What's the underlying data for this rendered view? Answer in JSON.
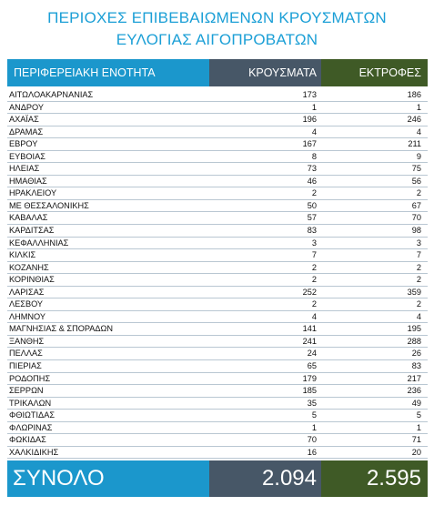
{
  "title": {
    "line1": "ΠΕΡΙΟΧΕΣ ΕΠΙΒΕΒΑΙΩΜΕΝΩΝ ΚΡΟΥΣΜΑΤΩΝ",
    "line2": "ΕΥΛΟΓΙΑΣ ΑΙΓΟΠΡΟΒΑΤΩΝ"
  },
  "colors": {
    "title": "#1b9fd6",
    "col1_header": "#1b97cc",
    "col2_header": "#475767",
    "col3_header": "#3f5a26"
  },
  "table": {
    "headers": [
      "ΠΕΡΙΦΕΡΕΙΑΚΗ ΕΝΟΤΗΤΑ",
      "ΚΡΟΥΣΜΑΤΑ",
      "ΕΚΤΡΟΦΕΣ"
    ],
    "rows": [
      [
        "ΑΙΤΩΛΟΑΚΑΡΝΑΝΙΑΣ",
        "173",
        "186"
      ],
      [
        "ΑΝΔΡΟΥ",
        "1",
        "1"
      ],
      [
        "ΑΧΑΪΑΣ",
        "196",
        "246"
      ],
      [
        "ΔΡΑΜΑΣ",
        "4",
        "4"
      ],
      [
        "ΕΒΡΟΥ",
        "167",
        "211"
      ],
      [
        "ΕΥΒΟΙΑΣ",
        "8",
        "9"
      ],
      [
        "ΗΛΕΙΑΣ",
        "73",
        "75"
      ],
      [
        "ΗΜΑΘΙΑΣ",
        "46",
        "56"
      ],
      [
        "ΗΡΑΚΛΕΙΟΥ",
        "2",
        "2"
      ],
      [
        "ΜΕ ΘΕΣΣΑΛΟΝΙΚΗΣ",
        "50",
        "67"
      ],
      [
        "ΚΑΒΑΛΑΣ",
        "57",
        "70"
      ],
      [
        "ΚΑΡΔΙΤΣΑΣ",
        "83",
        "98"
      ],
      [
        "ΚΕΦΑΛΛΗΝΙΑΣ",
        "3",
        "3"
      ],
      [
        "ΚΙΛΚΙΣ",
        "7",
        "7"
      ],
      [
        "ΚΟΖΑΝΗΣ",
        "2",
        "2"
      ],
      [
        "ΚΟΡΙΝΘΙΑΣ",
        "2",
        "2"
      ],
      [
        "ΛΑΡΙΣΑΣ",
        "252",
        "359"
      ],
      [
        "ΛΕΣΒΟΥ",
        "2",
        "2"
      ],
      [
        "ΛΗΜΝΟΥ",
        "4",
        "4"
      ],
      [
        "ΜΑΓΝΗΣΙΑΣ & ΣΠΟΡΑΔΩΝ",
        "141",
        "195"
      ],
      [
        "ΞΑΝΘΗΣ",
        "241",
        "288"
      ],
      [
        "ΠΕΛΛΑΣ",
        "24",
        "26"
      ],
      [
        "ΠΙΕΡΙΑΣ",
        "65",
        "83"
      ],
      [
        "ΡΟΔΟΠΗΣ",
        "179",
        "217"
      ],
      [
        "ΣΕΡΡΩΝ",
        "185",
        "236"
      ],
      [
        "ΤΡΙΚΑΛΩΝ",
        "35",
        "49"
      ],
      [
        "ΦΘΙΩΤΙΔΑΣ",
        "5",
        "5"
      ],
      [
        "ΦΛΩΡΙΝΑΣ",
        "1",
        "1"
      ],
      [
        "ΦΩΚΙΔΑΣ",
        "70",
        "71"
      ],
      [
        "ΧΑΛΚΙΔΙΚΗΣ",
        "16",
        "20"
      ]
    ],
    "total": {
      "label": "ΣΥΝΟΛΟ",
      "cases": "2.094",
      "farms": "2.595"
    }
  }
}
